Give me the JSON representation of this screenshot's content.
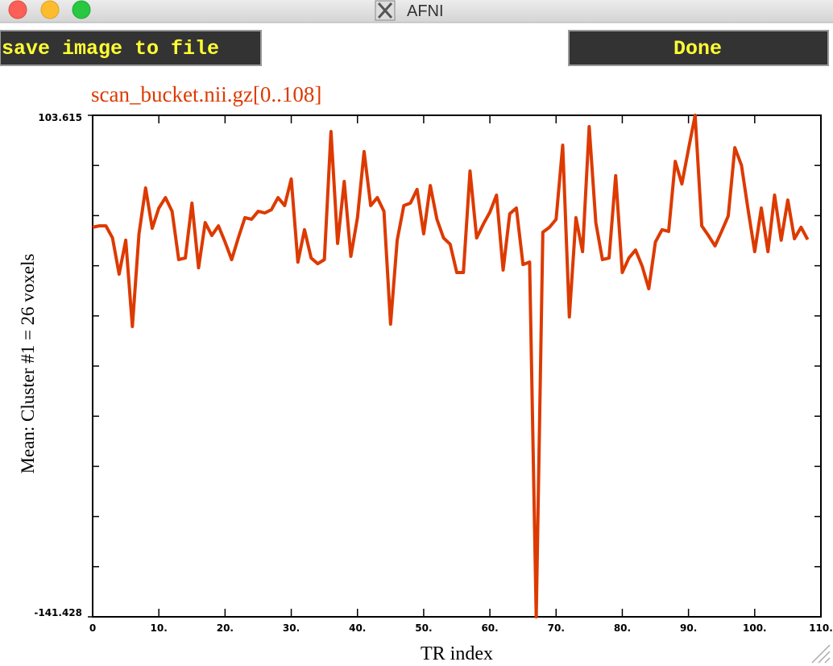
{
  "window": {
    "title": "AFNI"
  },
  "buttons": {
    "save": "save image to file",
    "done": "Done"
  },
  "chart_data": {
    "type": "line",
    "title": "scan_bucket.nii.gz[0..108]",
    "xlabel": "TR index",
    "ylabel": "Mean: Cluster #1 = 26 voxels",
    "color": "#dd3a00",
    "x": [
      0,
      1,
      2,
      3,
      4,
      5,
      6,
      7,
      8,
      9,
      10,
      11,
      12,
      13,
      14,
      15,
      16,
      17,
      18,
      19,
      20,
      21,
      22,
      23,
      24,
      25,
      26,
      27,
      28,
      29,
      30,
      31,
      32,
      33,
      34,
      35,
      36,
      37,
      38,
      39,
      40,
      41,
      42,
      43,
      44,
      45,
      46,
      47,
      48,
      49,
      50,
      51,
      52,
      53,
      54,
      55,
      56,
      57,
      58,
      59,
      60,
      61,
      62,
      63,
      64,
      65,
      66,
      67,
      68,
      69,
      70,
      71,
      72,
      73,
      74,
      75,
      76,
      77,
      78,
      79,
      80,
      81,
      82,
      83,
      84,
      85,
      86,
      87,
      88,
      89,
      90,
      91,
      92,
      93,
      94,
      95,
      96,
      97,
      98,
      99,
      100,
      101,
      102,
      103,
      104,
      105,
      106,
      107,
      108
    ],
    "values": [
      48.9,
      49.6,
      49.6,
      43.7,
      26.0,
      42.6,
      0.4,
      45.7,
      68.1,
      48.4,
      58.3,
      63.4,
      56.7,
      33.1,
      33.9,
      60.7,
      29.1,
      51.2,
      44.9,
      49.6,
      41.7,
      33.1,
      43.7,
      53.6,
      52.8,
      56.7,
      55.9,
      57.5,
      63.4,
      59.5,
      72.5,
      31.9,
      47.7,
      33.9,
      31.1,
      33.1,
      95.7,
      41.0,
      71.3,
      34.7,
      53.6,
      85.9,
      59.5,
      63.4,
      56.7,
      1.6,
      42.6,
      59.5,
      60.7,
      67.4,
      45.7,
      69.3,
      52.8,
      43.7,
      40.6,
      26.8,
      26.8,
      76.4,
      43.7,
      50.4,
      56.3,
      64.6,
      28.0,
      55.5,
      58.3,
      30.7,
      31.9,
      -141.428,
      46.5,
      48.9,
      52.8,
      89.0,
      5.1,
      53.6,
      37.0,
      98.1,
      51.2,
      33.1,
      33.9,
      74.1,
      26.8,
      33.9,
      37.8,
      29.9,
      18.9,
      41.7,
      47.7,
      46.9,
      81.1,
      70.1,
      87.1,
      103.615,
      49.6,
      44.9,
      39.8,
      46.9,
      54.4,
      87.8,
      79.2,
      57.5,
      37.0,
      58.3,
      37.0,
      64.6,
      42.6,
      62.2,
      43.3,
      48.9,
      42.9
    ],
    "xlim": [
      0,
      110
    ],
    "xticks": [
      0,
      {
        "value": 10,
        "label": "10."
      },
      {
        "value": 20,
        "label": "20."
      },
      {
        "value": 30,
        "label": "30."
      },
      {
        "value": 40,
        "label": "40."
      },
      {
        "value": 50,
        "label": "50."
      },
      {
        "value": 60,
        "label": "60."
      },
      {
        "value": 70,
        "label": "70."
      },
      {
        "value": 80,
        "label": "80."
      },
      {
        "value": 90,
        "label": "90."
      },
      {
        "value": 100,
        "label": "100."
      },
      {
        "value": 110,
        "label": "110."
      }
    ],
    "ylim": [
      -141.428,
      103.615
    ],
    "yticks": [
      -141.428,
      103.615
    ]
  }
}
